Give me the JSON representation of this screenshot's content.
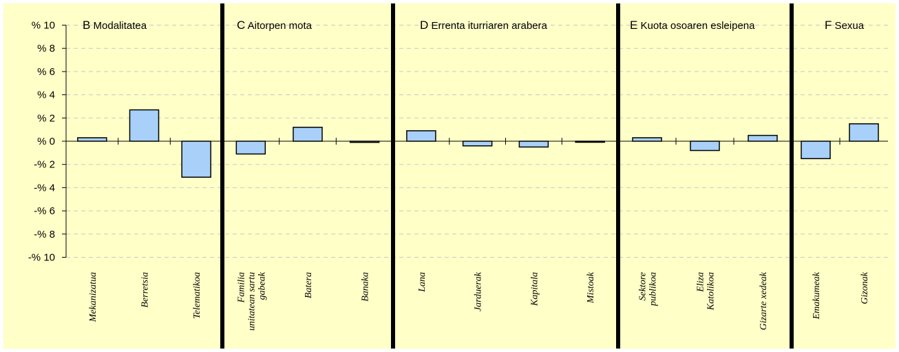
{
  "chart_data": {
    "type": "bar",
    "ylim": [
      -10,
      10
    ],
    "y_ticks": [
      "% 10",
      "% 8",
      "% 6",
      "% 4",
      "% 2",
      "% 0",
      "-% 2",
      "-% 4",
      "-% 6",
      "-% 8",
      "-% 10"
    ],
    "y_tick_values": [
      10,
      8,
      6,
      4,
      2,
      0,
      -2,
      -4,
      -6,
      -8,
      -10
    ],
    "grid": "horizontal dashed",
    "colors": {
      "background": "#ffffc8",
      "bar_fill": "#a8d0f8",
      "bar_stroke": "#000000",
      "grid": "#c8c8c8"
    },
    "sections": [
      {
        "letter": "B",
        "title": "Modalitatea",
        "categories": [
          [
            "Mekanizatua"
          ],
          [
            "Berretsia"
          ],
          [
            "Telematikoa"
          ]
        ],
        "values": [
          0.3,
          2.7,
          -3.1
        ]
      },
      {
        "letter": "C",
        "title": "Aitorpen mota",
        "categories": [
          [
            "Familia",
            "unitatean sartu",
            "gabeak"
          ],
          [
            "Batera"
          ],
          [
            "Banaka"
          ]
        ],
        "values": [
          -1.1,
          1.2,
          -0.1
        ]
      },
      {
        "letter": "D",
        "title": "Errenta iturriaren arabera",
        "categories": [
          [
            "Lana"
          ],
          [
            "Jarduerak"
          ],
          [
            "Kapitala"
          ],
          [
            "Mistoak"
          ]
        ],
        "values": [
          0.9,
          -0.4,
          -0.5,
          -0.05
        ]
      },
      {
        "letter": "E",
        "title": "Kuota osoaren esleipena",
        "categories": [
          [
            "Sektore",
            "publikoa"
          ],
          [
            "Eliza",
            "Katolikoa"
          ],
          [
            "Gizarte xedeak"
          ]
        ],
        "values": [
          0.3,
          -0.8,
          0.5
        ]
      },
      {
        "letter": "F",
        "title": "Sexua",
        "categories": [
          [
            "Emakumeak"
          ],
          [
            "Gizonak"
          ]
        ],
        "values": [
          -1.5,
          1.5
        ]
      }
    ]
  }
}
